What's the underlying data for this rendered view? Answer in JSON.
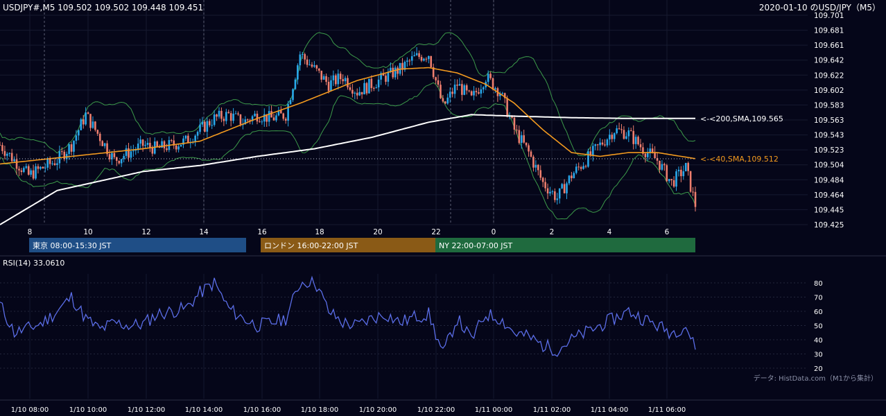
{
  "header": {
    "quote": "USDJPY#,M5 109.502 109.502 109.448 109.451",
    "title": "2020-01-10 のUSD/JPY（M5）"
  },
  "sessions": [
    {
      "label": "東京 08:00-15:30 JST",
      "color": "#1f4e86"
    },
    {
      "label": "ロンドン 16:00-22:00 JST",
      "color": "#8a5a16"
    },
    {
      "label": "NY 22:00-07:00 JST",
      "color": "#1f6a3e"
    }
  ],
  "annotations": {
    "sma200": "<-<200,SMA,109.565",
    "sma40": "<-<40,SMA,109.512"
  },
  "rsi": {
    "label": "RSI(14) 33.0610",
    "ticks": [
      80,
      70,
      60,
      50,
      40,
      30,
      20
    ]
  },
  "source": "データ: HistData.com（M1から集計）",
  "colors": {
    "bg": "#050619",
    "up": "#29a8ea",
    "down": "#ee7e6e",
    "sma40": "#f39a1f",
    "sma200": "#ffffff",
    "bb": "#3c9a4a",
    "rsi": "#5b6ee8"
  },
  "chart_data": {
    "type": "candlestick",
    "y_ticks": [
      "109.701",
      "109.681",
      "109.661",
      "109.642",
      "109.622",
      "109.602",
      "109.583",
      "109.563",
      "109.543",
      "109.523",
      "109.504",
      "109.484",
      "109.464",
      "109.445",
      "109.425"
    ],
    "ylim": [
      109.425,
      109.701
    ],
    "x_ticks_top": [
      "8",
      "10",
      "12",
      "14",
      "16",
      "18",
      "20",
      "22",
      "0",
      "2",
      "4",
      "6"
    ],
    "x_ticks_bottom": [
      "1/10 08:00",
      "1/10 10:00",
      "1/10 12:00",
      "1/10 14:00",
      "1/10 16:00",
      "1/10 18:00",
      "1/10 20:00",
      "1/10 22:00",
      "1/11 00:00",
      "1/11 02:00",
      "1/11 04:00",
      "1/11 06:00"
    ],
    "last_close": 109.451,
    "sma40_last": 109.512,
    "sma200_last": 109.565,
    "close_path": [
      [
        0,
        109.53
      ],
      [
        6,
        109.51
      ],
      [
        12,
        109.49
      ],
      [
        18,
        109.5
      ],
      [
        24,
        109.51
      ],
      [
        30,
        109.53
      ],
      [
        36,
        109.57
      ],
      [
        42,
        109.54
      ],
      [
        48,
        109.51
      ],
      [
        54,
        109.52
      ],
      [
        60,
        109.53
      ],
      [
        66,
        109.525
      ],
      [
        72,
        109.53
      ],
      [
        78,
        109.535
      ],
      [
        84,
        109.55
      ],
      [
        90,
        109.565
      ],
      [
        96,
        109.57
      ],
      [
        102,
        109.56
      ],
      [
        108,
        109.57
      ],
      [
        114,
        109.565
      ],
      [
        120,
        109.57
      ],
      [
        126,
        109.65
      ],
      [
        132,
        109.63
      ],
      [
        138,
        109.61
      ],
      [
        144,
        109.62
      ],
      [
        150,
        109.6
      ],
      [
        156,
        109.61
      ],
      [
        162,
        109.62
      ],
      [
        168,
        109.63
      ],
      [
        174,
        109.645
      ],
      [
        180,
        109.65
      ],
      [
        186,
        109.58
      ],
      [
        192,
        109.61
      ],
      [
        198,
        109.59
      ],
      [
        204,
        109.62
      ],
      [
        210,
        109.6
      ],
      [
        216,
        109.55
      ],
      [
        222,
        109.52
      ],
      [
        228,
        109.48
      ],
      [
        234,
        109.46
      ],
      [
        240,
        109.49
      ],
      [
        246,
        109.51
      ],
      [
        252,
        109.53
      ],
      [
        258,
        109.55
      ],
      [
        264,
        109.545
      ],
      [
        270,
        109.525
      ],
      [
        276,
        109.51
      ],
      [
        282,
        109.48
      ],
      [
        288,
        109.5
      ],
      [
        292,
        109.451
      ]
    ],
    "sma40_path": [
      [
        0,
        109.505
      ],
      [
        30,
        109.515
      ],
      [
        60,
        109.525
      ],
      [
        84,
        109.535
      ],
      [
        108,
        109.565
      ],
      [
        126,
        109.585
      ],
      [
        150,
        109.615
      ],
      [
        168,
        109.63
      ],
      [
        180,
        109.632
      ],
      [
        192,
        109.625
      ],
      [
        204,
        109.61
      ],
      [
        216,
        109.585
      ],
      [
        228,
        109.55
      ],
      [
        240,
        109.52
      ],
      [
        252,
        109.515
      ],
      [
        264,
        109.52
      ],
      [
        276,
        109.52
      ],
      [
        292,
        109.512
      ]
    ],
    "sma200_path": [
      [
        0,
        109.425
      ],
      [
        24,
        109.47
      ],
      [
        60,
        109.495
      ],
      [
        84,
        109.503
      ],
      [
        108,
        109.515
      ],
      [
        132,
        109.525
      ],
      [
        156,
        109.54
      ],
      [
        180,
        109.56
      ],
      [
        198,
        109.57
      ],
      [
        216,
        109.568
      ],
      [
        240,
        109.566
      ],
      [
        264,
        109.565
      ],
      [
        292,
        109.565
      ]
    ],
    "rsi_path": [
      [
        0,
        65
      ],
      [
        6,
        45
      ],
      [
        12,
        48
      ],
      [
        18,
        52
      ],
      [
        24,
        60
      ],
      [
        30,
        70
      ],
      [
        36,
        55
      ],
      [
        42,
        47
      ],
      [
        48,
        52
      ],
      [
        54,
        50
      ],
      [
        60,
        51
      ],
      [
        66,
        58
      ],
      [
        72,
        60
      ],
      [
        78,
        62
      ],
      [
        84,
        73
      ],
      [
        90,
        80
      ],
      [
        96,
        62
      ],
      [
        102,
        55
      ],
      [
        108,
        50
      ],
      [
        114,
        52
      ],
      [
        120,
        55
      ],
      [
        126,
        80
      ],
      [
        132,
        82
      ],
      [
        138,
        60
      ],
      [
        144,
        52
      ],
      [
        150,
        50
      ],
      [
        156,
        55
      ],
      [
        162,
        58
      ],
      [
        168,
        52
      ],
      [
        174,
        56
      ],
      [
        180,
        58
      ],
      [
        186,
        30
      ],
      [
        192,
        55
      ],
      [
        198,
        40
      ],
      [
        204,
        58
      ],
      [
        210,
        55
      ],
      [
        216,
        45
      ],
      [
        222,
        42
      ],
      [
        228,
        36
      ],
      [
        234,
        33
      ],
      [
        240,
        40
      ],
      [
        246,
        45
      ],
      [
        252,
        50
      ],
      [
        258,
        55
      ],
      [
        264,
        60
      ],
      [
        270,
        55
      ],
      [
        276,
        50
      ],
      [
        282,
        45
      ],
      [
        288,
        50
      ],
      [
        292,
        33
      ]
    ]
  }
}
